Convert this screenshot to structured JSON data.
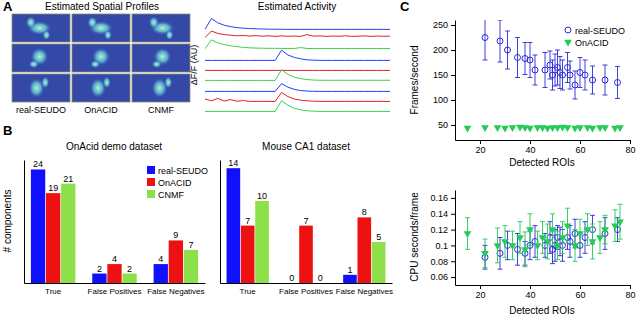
{
  "chart_data": [
    {
      "type": "image",
      "annotation": "A",
      "title": "Estimated Spatial Profiles",
      "categories": [
        "real-SEUDO",
        "OnACID",
        "CNMF"
      ]
    },
    {
      "type": "line",
      "title": "Estimated Activity",
      "y_label": "ΔF/F (AU)",
      "tick_labels": false,
      "ylim": [
        0,
        1
      ],
      "series": [
        {
          "color": "#1f3fff",
          "values": [
            0.05,
            0.95,
            0.6,
            0.4,
            0.28,
            0.2,
            0.15,
            0.12,
            0.1,
            0.08,
            0.07,
            0.06,
            0.06,
            0.05,
            0.05,
            0.05,
            0.05,
            0.05,
            0.05,
            0.05,
            0.05,
            0.05,
            0.05,
            0.05,
            0.05,
            0.05,
            0.05,
            0.05,
            0.05,
            0.05
          ]
        },
        {
          "color": "#e02020",
          "values": [
            0.2,
            0.75,
            0.55,
            0.45,
            0.4,
            0.35,
            0.38,
            0.33,
            0.36,
            0.32,
            0.35,
            0.3,
            0.34,
            0.31,
            0.33,
            0.3,
            0.45,
            0.32,
            0.34,
            0.3,
            0.33,
            0.31,
            0.35,
            0.3,
            0.32,
            0.34,
            0.3,
            0.33,
            0.31,
            0.32
          ]
        },
        {
          "color": "#3fd040",
          "values": [
            0.1,
            0.85,
            0.6,
            0.45,
            0.35,
            0.28,
            0.22,
            0.18,
            0.16,
            0.15,
            0.14,
            0.14,
            0.13,
            0.13,
            0.13,
            0.2,
            0.13,
            0.12,
            0.12,
            0.12,
            0.12,
            0.12,
            0.12,
            0.12,
            0.12,
            0.12,
            0.12,
            0.12,
            0.12,
            0.12
          ]
        },
        {
          "color": "#1f3fff",
          "values": [
            0.05,
            0.05,
            0.05,
            0.05,
            0.05,
            0.05,
            0.05,
            0.05,
            0.05,
            0.05,
            0.05,
            0.05,
            0.9,
            0.5,
            0.3,
            0.18,
            0.1,
            0.07,
            0.05,
            0.05,
            0.05,
            0.05,
            0.05,
            0.05,
            0.05,
            0.05,
            0.05,
            0.05,
            0.05,
            0.05
          ]
        },
        {
          "color": "#e02020",
          "values": [
            0.05,
            0.05,
            0.05,
            0.05,
            0.05,
            0.05,
            0.05,
            0.05,
            0.05,
            0.05,
            0.05,
            0.05,
            0.05,
            0.05,
            0.05,
            0.05,
            0.05,
            0.05,
            0.05,
            0.05,
            0.05,
            0.05,
            0.05,
            0.05,
            0.05,
            0.05,
            0.05,
            0.05,
            0.05,
            0.05
          ]
        },
        {
          "color": "#3fd040",
          "values": [
            0.05,
            0.05,
            0.05,
            0.05,
            0.05,
            0.05,
            0.05,
            0.05,
            0.05,
            0.05,
            0.05,
            0.05,
            0.95,
            0.55,
            0.32,
            0.2,
            0.12,
            0.08,
            0.06,
            0.06,
            0.06,
            0.06,
            0.06,
            0.06,
            0.06,
            0.06,
            0.06,
            0.06,
            0.06,
            0.06
          ]
        },
        {
          "color": "#1f3fff",
          "values": [
            0.05,
            0.05,
            0.05,
            0.05,
            0.05,
            0.05,
            0.05,
            0.05,
            0.05,
            0.05,
            0.05,
            0.05,
            0.7,
            0.4,
            0.22,
            0.12,
            0.08,
            0.06,
            0.05,
            0.05,
            0.05,
            0.05,
            0.05,
            0.05,
            0.05,
            0.05,
            0.05,
            0.05,
            0.05,
            0.05
          ]
        },
        {
          "color": "#e02020",
          "values": [
            0.25,
            0.1,
            0.3,
            0.08,
            0.2,
            0.06,
            0.12,
            0.05,
            0.05,
            0.05,
            0.05,
            0.05,
            0.8,
            0.45,
            0.25,
            0.15,
            0.1,
            0.07,
            0.05,
            0.05,
            0.05,
            0.05,
            0.05,
            0.05,
            0.05,
            0.05,
            0.05,
            0.05,
            0.05,
            0.05
          ]
        },
        {
          "color": "#3fd040",
          "values": [
            0.05,
            0.05,
            0.05,
            0.05,
            0.05,
            0.05,
            0.05,
            0.05,
            0.05,
            0.05,
            0.05,
            0.05,
            0.95,
            0.55,
            0.3,
            0.18,
            0.1,
            0.07,
            0.05,
            0.05,
            0.05,
            0.05,
            0.05,
            0.05,
            0.05,
            0.05,
            0.05,
            0.05,
            0.05,
            0.05
          ]
        }
      ]
    },
    {
      "type": "bar",
      "annotation": "B",
      "title": "OnAcid demo dataset",
      "y_label": "# components",
      "categories": [
        "True",
        "False Positives",
        "False Negatives"
      ],
      "ylim": [
        0,
        26
      ],
      "tick_labels": "x",
      "data_labels": true,
      "legend": "upper right",
      "series": [
        {
          "name": "real-SEUDO",
          "color": "#1010ff",
          "values": [
            24,
            2,
            4
          ]
        },
        {
          "name": "OnACID",
          "color": "#ee1111",
          "values": [
            19,
            4,
            9
          ]
        },
        {
          "name": "CNMF",
          "color": "#8ee04a",
          "values": [
            21,
            2,
            7
          ]
        }
      ]
    },
    {
      "type": "bar",
      "title": "Mouse CA1 dataset",
      "categories": [
        "True",
        "False Positives",
        "False Negatives"
      ],
      "ylim": [
        0,
        15
      ],
      "tick_labels": "x",
      "data_labels": true,
      "series": [
        {
          "color": "#1010ff",
          "values": [
            14,
            0,
            1
          ]
        },
        {
          "color": "#ee1111",
          "values": [
            7,
            7,
            8
          ]
        },
        {
          "color": "#8ee04a",
          "values": [
            10,
            0,
            5
          ]
        }
      ]
    },
    {
      "type": "scatter",
      "annotation": "C",
      "x_label": "Detected ROIs",
      "y_label": "Frames/second",
      "xlim": [
        10,
        80
      ],
      "xticks": [
        20,
        40,
        60,
        80
      ],
      "ylim": [
        20,
        260
      ],
      "yticks": [
        50,
        100,
        150,
        200,
        250
      ],
      "legend": "upper right",
      "series": [
        {
          "name": "real-SEUDO",
          "color": "#2b2bd9",
          "marker": "circle",
          "x": [
            22,
            28,
            31,
            35,
            38,
            40,
            42,
            46,
            48,
            49,
            50,
            51,
            52,
            53,
            55,
            56,
            58,
            60,
            62,
            65,
            70,
            75
          ],
          "values": [
            225,
            218,
            200,
            185,
            183,
            180,
            160,
            160,
            170,
            150,
            160,
            165,
            155,
            150,
            165,
            150,
            130,
            155,
            150,
            140,
            140,
            135
          ],
          "errors": [
            45,
            42,
            38,
            40,
            32,
            35,
            30,
            35,
            28,
            30,
            32,
            35,
            32,
            30,
            30,
            28,
            28,
            30,
            30,
            28,
            30,
            32
          ]
        },
        {
          "name": "OnACID",
          "color": "#22cc55",
          "marker": "triangle-down",
          "x": [
            15,
            22,
            27,
            30,
            33,
            36,
            38,
            40,
            43,
            45,
            47,
            49,
            51,
            53,
            55,
            58,
            60,
            63,
            65,
            68,
            70,
            74,
            76
          ],
          "values": [
            44,
            45,
            45,
            44,
            45,
            46,
            45,
            44,
            45,
            45,
            44,
            45,
            45,
            46,
            45,
            44,
            45,
            45,
            44,
            45,
            45,
            44,
            45
          ]
        }
      ]
    },
    {
      "type": "scatter",
      "x_label": "Detected ROIs",
      "y_label": "CPU seconds/frame",
      "xlim": [
        10,
        80
      ],
      "xticks": [
        20,
        40,
        60,
        80
      ],
      "ylim": [
        0.05,
        0.17
      ],
      "yticks": [
        0.06,
        0.08,
        0.1,
        0.12,
        0.14,
        0.16
      ],
      "series": [
        {
          "color": "#2b2bd9",
          "marker": "circle",
          "x": [
            22,
            28,
            31,
            35,
            38,
            40,
            42,
            46,
            48,
            49,
            50,
            51,
            52,
            53,
            55,
            56,
            58,
            60,
            62,
            65,
            70,
            75
          ],
          "values": [
            0.085,
            0.09,
            0.1,
            0.095,
            0.09,
            0.1,
            0.105,
            0.1,
            0.11,
            0.095,
            0.1,
            0.11,
            0.105,
            0.1,
            0.11,
            0.105,
            0.115,
            0.1,
            0.11,
            0.12,
            0.115,
            0.12
          ],
          "errors": [
            0.015,
            0.02,
            0.018,
            0.02,
            0.015,
            0.018,
            0.02,
            0.015,
            0.02,
            0.018,
            0.02,
            0.015,
            0.018,
            0.02,
            0.015,
            0.02,
            0.018,
            0.015,
            0.02,
            0.018,
            0.02,
            0.015
          ]
        },
        {
          "color": "#22cc55",
          "marker": "triangle-down",
          "x": [
            15,
            22,
            27,
            30,
            33,
            36,
            38,
            40,
            43,
            45,
            47,
            49,
            51,
            53,
            55,
            58,
            60,
            63,
            65,
            68,
            70,
            74,
            76
          ],
          "values": [
            0.115,
            0.09,
            0.1,
            0.105,
            0.1,
            0.11,
            0.095,
            0.12,
            0.1,
            0.11,
            0.105,
            0.12,
            0.1,
            0.11,
            0.125,
            0.1,
            0.115,
            0.12,
            0.105,
            0.11,
            0.12,
            0.125,
            0.13
          ],
          "errors": [
            0.02,
            0.018,
            0.022,
            0.02,
            0.018,
            0.02,
            0.022,
            0.02,
            0.018,
            0.02,
            0.022,
            0.02,
            0.018,
            0.02,
            0.022,
            0.02,
            0.018,
            0.02,
            0.022,
            0.02,
            0.018,
            0.02,
            0.022
          ]
        }
      ]
    }
  ]
}
